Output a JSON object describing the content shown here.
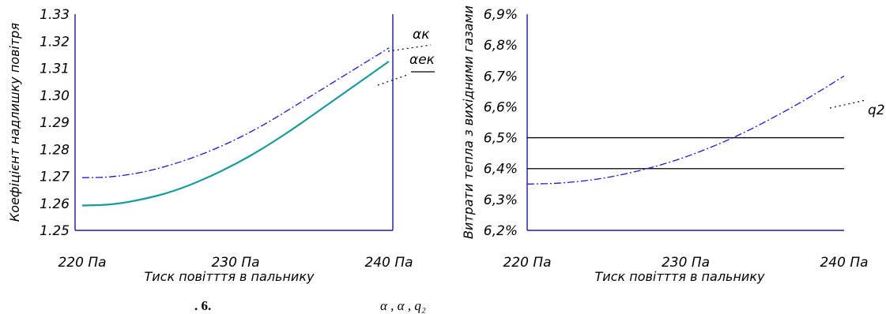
{
  "figure_caption": {
    "number": ". 6.",
    "symbols": "α , α , q₂"
  },
  "colors": {
    "axis": "#1a1aa8",
    "dashed_series": "#1a1acc",
    "solid_series": "#1a9a9a",
    "reference_lines": "#000000"
  },
  "chart_data": [
    {
      "type": "line",
      "title": "",
      "xlabel": "Тиск повітття в пальнику",
      "ylabel": "Коефіцієнт надлишку повітря",
      "categories": [
        "220 Па",
        "230 Па",
        "240 Па"
      ],
      "x": [
        220,
        230,
        240
      ],
      "xlim": [
        220,
        240
      ],
      "ylim": [
        1.25,
        1.33
      ],
      "yticks": [
        "1.25",
        "1.26",
        "1.27",
        "1.28",
        "1.29",
        "1.30",
        "1.31",
        "1.32",
        "1.33"
      ],
      "grid": false,
      "series": [
        {
          "name": "αк",
          "style": "dash-dot",
          "color": "#1a1acc",
          "x": [
            220,
            222,
            224,
            226,
            228,
            230,
            232,
            234,
            236,
            238,
            240
          ],
          "y": [
            1.2695,
            1.2697,
            1.2715,
            1.2745,
            1.2785,
            1.2835,
            1.2895,
            1.2965,
            1.3035,
            1.3105,
            1.3175
          ]
        },
        {
          "name": "αек",
          "style": "solid",
          "color": "#1a9a9a",
          "x": [
            220,
            222,
            224,
            226,
            228,
            230,
            232,
            234,
            236,
            238,
            240
          ],
          "y": [
            1.2592,
            1.2595,
            1.2615,
            1.2645,
            1.269,
            1.2745,
            1.281,
            1.2885,
            1.2965,
            1.3045,
            1.3125
          ]
        }
      ]
    },
    {
      "type": "line",
      "title": "",
      "xlabel": "Тиск повітття в пальнику",
      "ylabel": "Витрати тепла з вихідними газами",
      "categories": [
        "220 Па",
        "230 Па",
        "240 Па"
      ],
      "x": [
        220,
        230,
        240
      ],
      "xlim": [
        220,
        240
      ],
      "ylim": [
        6.2,
        6.9
      ],
      "yticks": [
        "6,2%",
        "6,3%",
        "6,4%",
        "6,5%",
        "6,6%",
        "6,7%",
        "6,8%",
        "6,9%"
      ],
      "grid": false,
      "reference_lines": [
        6.4,
        6.5
      ],
      "series": [
        {
          "name": "q2",
          "style": "dash-dot",
          "color": "#1a1acc",
          "x": [
            220,
            222,
            224,
            226,
            228,
            230,
            232,
            234,
            236,
            238,
            240
          ],
          "y": [
            6.35,
            6.352,
            6.362,
            6.38,
            6.405,
            6.437,
            6.477,
            6.524,
            6.578,
            6.636,
            6.7
          ]
        }
      ]
    }
  ]
}
